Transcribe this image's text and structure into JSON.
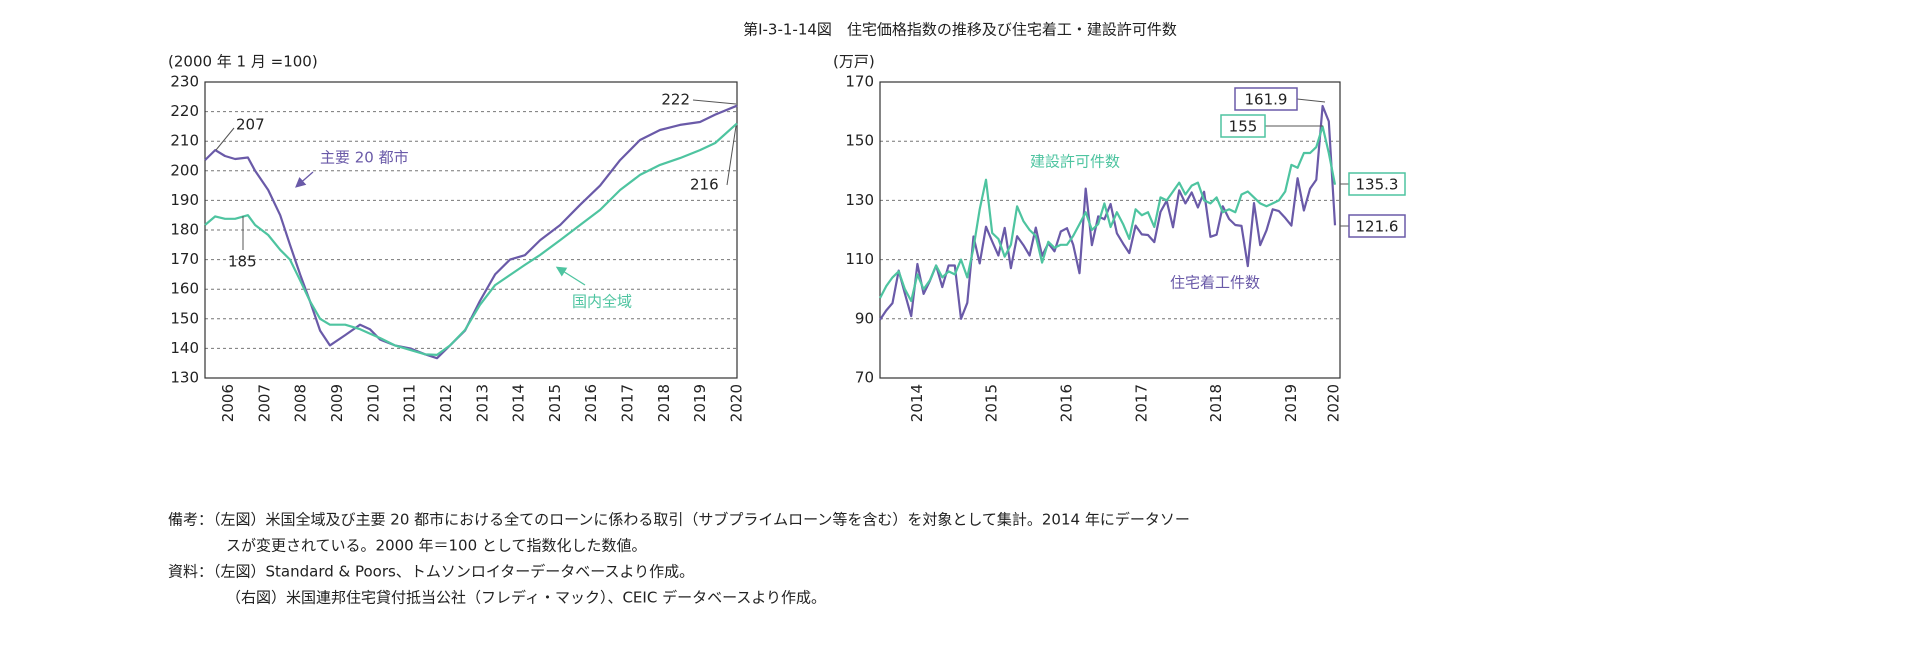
{
  "title": "第Ⅰ-3-1-14図　住宅価格指数の推移及び住宅着工・建設許可件数",
  "chart_data": [
    {
      "type": "line",
      "y_label": "(2000 年 1 月 =100)",
      "x": [
        2005.85,
        2006.13,
        2006.4,
        2006.68,
        2007.03,
        2007.23,
        2007.59,
        2007.92,
        2008.19,
        2008.47,
        2008.74,
        2009.02,
        2009.29,
        2009.71,
        2010.12,
        2010.39,
        2010.67,
        2011.08,
        2011.5,
        2011.91,
        2012.24,
        2012.6,
        2013.01,
        2013.42,
        2013.84,
        2014.25,
        2014.66,
        2015.08,
        2015.63,
        2016.18,
        2016.73,
        2017.28,
        2017.83,
        2018.38,
        2018.93,
        2019.48,
        2019.9,
        2020.5
      ],
      "series": [
        {
          "name": "主要 20 都市",
          "color": "#6a5aa8",
          "values": [
            203.6,
            207,
            205,
            204,
            204.5,
            200,
            193.5,
            185,
            175,
            165,
            156,
            146,
            141,
            144.5,
            148,
            146.5,
            143,
            141,
            140,
            138,
            136.7,
            141,
            146,
            156,
            165,
            170,
            171.5,
            176.6,
            181.7,
            188.5,
            195,
            203.6,
            210.4,
            213.8,
            215.5,
            216.5,
            219,
            222
          ]
        },
        {
          "name": "国内全域",
          "color": "#4ec4a0",
          "values": [
            181.7,
            184.6,
            183.8,
            183.8,
            185,
            181.7,
            178.3,
            173.3,
            170,
            163,
            156,
            150,
            148,
            148,
            146.5,
            145,
            143.5,
            141,
            139.5,
            138,
            137.8,
            141,
            146.2,
            154.7,
            161.4,
            164.8,
            168.2,
            171.6,
            176.6,
            181.7,
            186.8,
            193.5,
            198.6,
            202,
            204.3,
            207,
            209.4,
            216
          ]
        }
      ],
      "annotations": [
        "207",
        "185",
        "222",
        "216"
      ],
      "xlim": [
        2005.85,
        2020.5
      ],
      "xticks": [
        {
          "value": 2006.5,
          "label": "2006"
        },
        {
          "value": 2007.5,
          "label": "2007"
        },
        {
          "value": 2008.5,
          "label": "2008"
        },
        {
          "value": 2009.5,
          "label": "2009"
        },
        {
          "value": 2010.5,
          "label": "2010"
        },
        {
          "value": 2011.5,
          "label": "2011"
        },
        {
          "value": 2012.5,
          "label": "2012"
        },
        {
          "value": 2013.5,
          "label": "2013"
        },
        {
          "value": 2014.5,
          "label": "2014"
        },
        {
          "value": 2015.5,
          "label": "2015"
        },
        {
          "value": 2016.5,
          "label": "2016"
        },
        {
          "value": 2017.5,
          "label": "2017"
        },
        {
          "value": 2018.5,
          "label": "2018"
        },
        {
          "value": 2019.5,
          "label": "2019"
        },
        {
          "value": 2020.5,
          "label": "2020"
        }
      ],
      "ylim": [
        130,
        230
      ],
      "yticks": [
        130,
        140,
        150,
        160,
        170,
        180,
        190,
        200,
        210,
        220,
        230
      ],
      "grid": true
    },
    {
      "type": "line",
      "y_label": "(万戸)",
      "x": [
        2014,
        2014.083,
        2014.167,
        2014.25,
        2014.333,
        2014.417,
        2014.5,
        2014.583,
        2014.667,
        2014.75,
        2014.833,
        2014.917,
        2015,
        2015.083,
        2015.167,
        2015.25,
        2015.333,
        2015.417,
        2015.5,
        2015.583,
        2015.667,
        2015.75,
        2015.833,
        2015.917,
        2016,
        2016.083,
        2016.167,
        2016.25,
        2016.333,
        2016.417,
        2016.5,
        2016.583,
        2016.667,
        2016.75,
        2016.833,
        2016.917,
        2017,
        2017.083,
        2017.167,
        2017.25,
        2017.333,
        2017.417,
        2017.5,
        2017.583,
        2017.667,
        2017.75,
        2017.833,
        2017.917,
        2018,
        2018.083,
        2018.167,
        2018.25,
        2018.333,
        2018.417,
        2018.5,
        2018.583,
        2018.667,
        2018.75,
        2018.833,
        2018.917,
        2019,
        2019.083,
        2019.167,
        2019.25,
        2019.333,
        2019.417,
        2019.5,
        2019.583,
        2019.667,
        2019.75,
        2019.833,
        2019.917,
        2020,
        2020.083
      ],
      "series": [
        {
          "name": "住宅着工件数",
          "color": "#6a5aa8",
          "values": [
            89.7,
            92.8,
            95.3,
            106.3,
            98.5,
            90.9,
            108.5,
            98.4,
            102.8,
            108.0,
            100.7,
            108.0,
            108.0,
            90.0,
            95.4,
            117.8,
            108.7,
            121.1,
            116.1,
            111.4,
            120.7,
            107.1,
            117.9,
            114.9,
            111.4,
            120.8,
            111.3,
            115.5,
            112.8,
            119.5,
            120.6,
            115.0,
            105.4,
            134.0,
            114.9,
            124.6,
            123.6,
            128.8,
            118.9,
            115.4,
            112.2,
            121.5,
            118.5,
            118.3,
            115.9,
            126.1,
            129.9,
            120.9,
            133.4,
            129.0,
            132.7,
            127.6,
            132.9,
            117.7,
            118.4,
            128.0,
            123.7,
            121.7,
            121.4,
            107.8,
            129.1,
            114.9,
            119.9,
            127.0,
            126.4,
            124.1,
            121.5,
            137.5,
            126.6,
            134.0,
            137.0,
            161.9,
            156.7,
            121.6
          ]
        },
        {
          "name": "建設許可件数",
          "color": "#4ec4a0",
          "values": [
            97,
            101,
            104,
            106,
            100,
            96,
            105,
            100,
            103,
            108,
            104,
            106,
            105,
            110,
            104,
            114,
            127,
            137,
            119,
            117,
            111,
            115,
            128,
            123,
            120,
            118,
            109,
            116,
            114,
            115,
            115,
            118,
            122,
            126,
            120,
            122,
            129,
            121,
            126,
            122,
            117,
            127,
            125,
            126,
            121,
            131,
            130,
            133,
            136,
            132,
            135,
            136,
            130,
            129,
            131,
            126,
            127,
            126,
            132,
            133,
            131,
            129,
            128,
            129,
            130,
            133,
            142,
            141,
            146,
            146,
            148,
            155,
            146,
            135.3
          ]
        }
      ],
      "annotations": [
        "161.9",
        "155",
        "135.3",
        "121.6"
      ],
      "xlim": [
        2014,
        2020.15
      ],
      "xticks": [
        {
          "value": 2014.5,
          "label": "2014"
        },
        {
          "value": 2015.5,
          "label": "2015"
        },
        {
          "value": 2016.5,
          "label": "2016"
        },
        {
          "value": 2017.5,
          "label": "2017"
        },
        {
          "value": 2018.5,
          "label": "2018"
        },
        {
          "value": 2019.5,
          "label": "2019"
        },
        {
          "value": 2020.07,
          "label": "2020"
        }
      ],
      "ylim": [
        70,
        170
      ],
      "yticks": [
        70,
        90,
        110,
        130,
        150,
        170
      ],
      "grid": true
    }
  ],
  "notes": [
    "備考：（左図）米国全域及び主要 20 都市における全てのローンに係わる取引（サブプライムローン等を含む）を対象として集計。2014 年にデータソー",
    "スが変更されている。2000 年＝100 として指数化した数値。",
    "資料：（左図）Standard & Poors、トムソンロイターデータベースより作成。",
    "（右図）米国連邦住宅貸付抵当公社（フレディ・マック）、CEIC データベースより作成。"
  ]
}
